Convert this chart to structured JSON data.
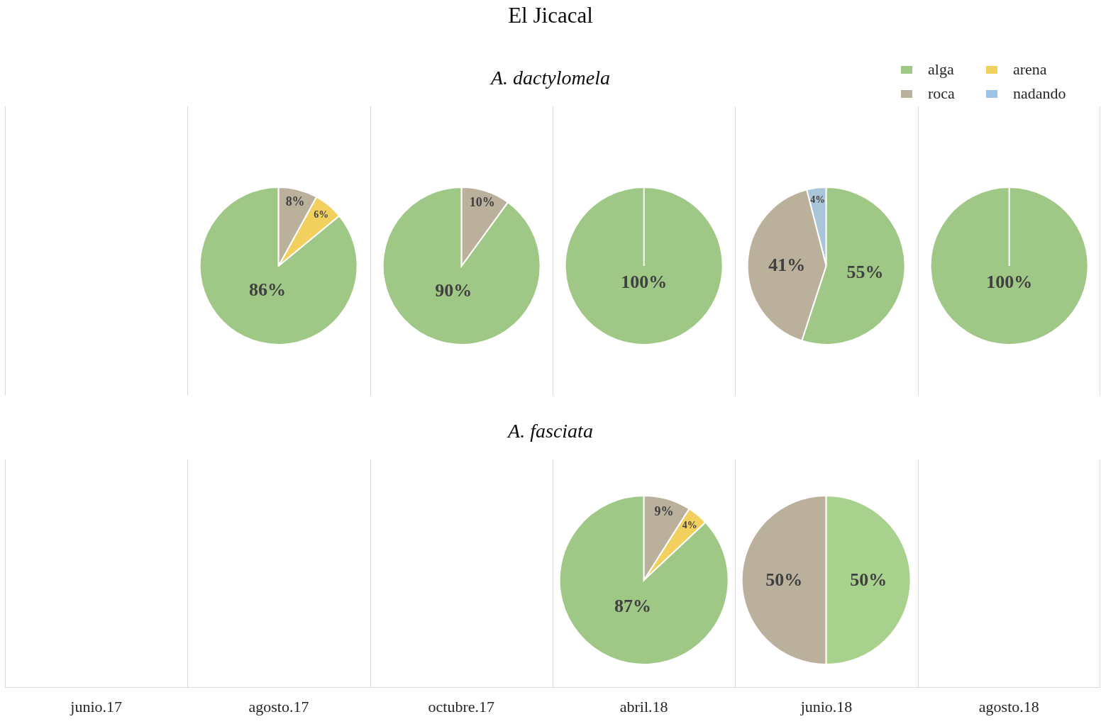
{
  "chart_data": [
    {
      "type": "other",
      "title": "El Jicacal"
    },
    {
      "type": "other",
      "title": "A. dactylomela"
    },
    {
      "type": "other"
    },
    {
      "type": "pie",
      "categories": [
        "alga",
        "arena",
        "roca",
        "nadando"
      ],
      "values": [
        86,
        6,
        8,
        null
      ],
      "colors": [
        "#9fc886",
        "#f2d05e",
        "#bab09c",
        "#9dc3e6"
      ],
      "value_labels": [
        "86%",
        "6%",
        "8%",
        null
      ],
      "legend": "top right"
    },
    {
      "type": "pie",
      "categories": [
        null,
        null
      ],
      "values": [
        90,
        10
      ],
      "colors": [
        "#9fc886",
        "#bab09c"
      ],
      "value_labels": [
        "90%",
        "10%"
      ]
    },
    {
      "type": "pie",
      "categories": [
        null
      ],
      "values": [
        100
      ],
      "colors": [
        "#9fc886"
      ],
      "value_labels": [
        "100%"
      ]
    },
    {
      "type": "pie",
      "categories": [
        null,
        null,
        null
      ],
      "values": [
        4,
        41,
        55
      ],
      "colors": [
        "#a9c6d9",
        "#bab09c",
        "#9fc886"
      ],
      "value_labels": [
        "4%",
        "41%",
        "55%"
      ]
    },
    {
      "type": "pie",
      "categories": [
        null
      ],
      "values": [
        100
      ],
      "colors": [
        "#9fc886"
      ],
      "value_labels": [
        "100%"
      ]
    },
    {
      "type": "other",
      "title": "A. fasciata"
    },
    {
      "type": "other",
      "xlabel": "junio.17"
    },
    {
      "type": "other",
      "xlabel": "agosto.17"
    },
    {
      "type": "other",
      "xlabel": "octubre.17"
    },
    {
      "type": "pie",
      "categories": [
        null,
        null,
        null
      ],
      "values": [
        87,
        4,
        9
      ],
      "colors": [
        "#9fc886",
        "#f2d05e",
        "#bab09c"
      ],
      "value_labels": [
        "87%",
        "4%",
        "9%"
      ],
      "xlabel": "abril.18"
    },
    {
      "type": "pie",
      "categories": [
        null,
        null
      ],
      "values": [
        50,
        50
      ],
      "colors": [
        "#bab09c",
        "#a8d18e"
      ],
      "value_labels": [
        "50%",
        "50%"
      ],
      "xlabel": "junio.18"
    },
    {
      "type": "other",
      "xlabel": "agosto.18"
    }
  ]
}
